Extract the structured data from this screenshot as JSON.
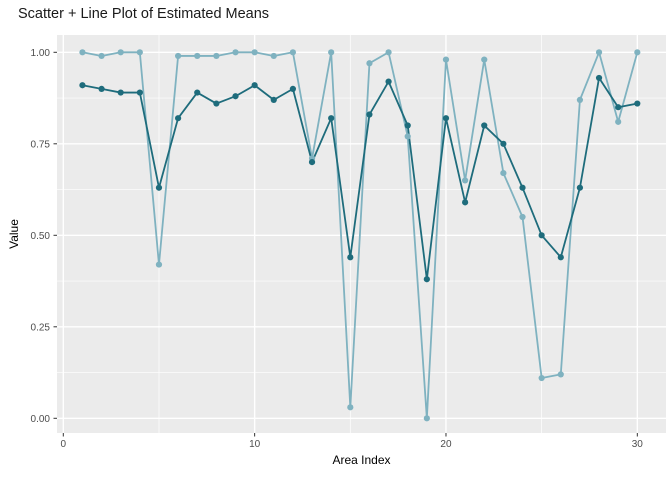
{
  "chart": {
    "title": "Scatter + Line Plot of Estimated Means",
    "xlabel": "Area Index",
    "ylabel": "Value"
  },
  "colors": {
    "panel_bg": "#ebebeb",
    "grid": "#ffffff",
    "tick_mark": "#333333",
    "tick_text": "#4d4d4d",
    "dark_series": "#1e6c7c",
    "light_series": "#7fb2c0"
  },
  "chart_data": {
    "type": "line",
    "title": "Scatter + Line Plot of Estimated Means",
    "xlabel": "Area Index",
    "ylabel": "Value",
    "legend": "none",
    "grid": "white major and minor gridlines on gray panel",
    "x": [
      1,
      2,
      3,
      4,
      5,
      6,
      7,
      8,
      9,
      10,
      11,
      12,
      13,
      14,
      15,
      16,
      17,
      18,
      19,
      20,
      21,
      22,
      23,
      24,
      25,
      26,
      27,
      28,
      29,
      30
    ],
    "series": [
      {
        "name": "light_teal_series",
        "color": "#7fb2c0",
        "values": [
          1.0,
          0.99,
          1.0,
          1.0,
          0.42,
          0.99,
          0.99,
          0.99,
          1.0,
          1.0,
          0.99,
          1.0,
          0.71,
          1.0,
          0.03,
          0.97,
          1.0,
          0.77,
          0.0,
          0.98,
          0.65,
          0.98,
          0.67,
          0.55,
          0.11,
          0.12,
          0.87,
          1.0,
          0.81,
          1.0
        ]
      },
      {
        "name": "dark_teal_series",
        "color": "#1e6c7c",
        "values": [
          0.91,
          0.9,
          0.89,
          0.89,
          0.63,
          0.82,
          0.89,
          0.86,
          0.88,
          0.91,
          0.87,
          0.9,
          0.7,
          0.82,
          0.44,
          0.83,
          0.92,
          0.8,
          0.38,
          0.82,
          0.59,
          0.8,
          0.75,
          0.63,
          0.5,
          0.44,
          0.63,
          0.93,
          0.85,
          0.86
        ]
      }
    ],
    "x_ticks": [
      0,
      10,
      20,
      30
    ],
    "x_tick_labels": [
      "0",
      "10",
      "20",
      "30"
    ],
    "x_minor_ticks": [
      5,
      15,
      25
    ],
    "y_ticks": [
      0.0,
      0.25,
      0.5,
      0.75,
      1.0
    ],
    "y_tick_labels": [
      "0.00",
      "0.25",
      "0.50",
      "0.75",
      "1.00"
    ],
    "y_minor_ticks": [
      0.125,
      0.375,
      0.625,
      0.875
    ],
    "xlim": [
      -0.45,
      31.45
    ],
    "ylim": [
      -0.05,
      1.05
    ]
  }
}
